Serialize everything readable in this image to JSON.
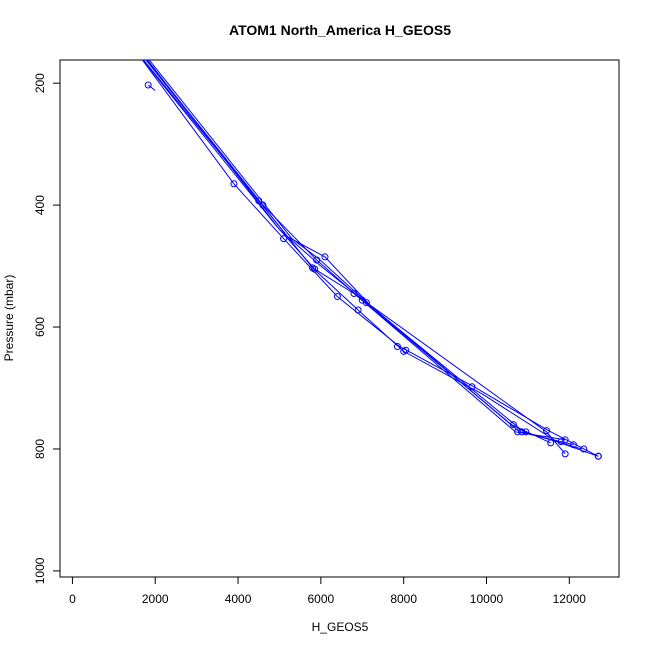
{
  "chart_data": {
    "type": "line",
    "title": "ATOM1 North_America H_GEOS5",
    "xlabel": "H_GEOS5",
    "ylabel": "Pressure (mbar)",
    "xlim": [
      -300,
      13200
    ],
    "ylim": [
      1010,
      162
    ],
    "y_inverted": true,
    "grid": false,
    "legend": "none",
    "series_color": "#0000ff",
    "marker": "open-circle",
    "x_ticks": [
      0,
      2000,
      4000,
      6000,
      8000,
      10000,
      12000
    ],
    "x_tick_labels": [
      "0",
      "2000",
      "4000",
      "6000",
      "8000",
      "10000",
      "12000"
    ],
    "y_ticks": [
      200,
      400,
      600,
      800,
      1000
    ],
    "y_tick_labels": [
      "200",
      "400",
      "600",
      "800",
      "1000"
    ],
    "series": [
      {
        "x": [
          1450,
          3900,
          5100,
          6400,
          7900,
          9700,
          11500,
          12700
        ],
        "y": [
          140,
          365,
          455,
          550,
          632,
          698,
          770,
          812
        ]
      },
      {
        "x": [
          1550,
          4500,
          5800,
          6900,
          8000,
          9900,
          11700,
          12700
        ],
        "y": [
          148,
          393,
          503,
          572,
          640,
          710,
          788,
          812
        ]
      },
      {
        "x": [
          1650,
          4600,
          5900,
          7000,
          10600,
          11550
        ],
        "y": [
          150,
          400,
          490,
          556,
          760,
          790
        ]
      },
      {
        "x": [
          1500,
          4900,
          5850,
          6800,
          10700,
          11900
        ],
        "y": [
          145,
          432,
          505,
          545,
          772,
          785
        ]
      },
      {
        "x": [
          1600,
          5200,
          6100,
          7200,
          10800,
          12100
        ],
        "y": [
          147,
          452,
          485,
          565,
          772,
          793
        ]
      },
      {
        "x": [
          1700,
          5000,
          6000,
          7100,
          10900,
          12300
        ],
        "y": [
          152,
          440,
          500,
          560,
          772,
          800
        ]
      },
      {
        "x": [
          1750,
          5300,
          5950,
          7150,
          11450,
          11900
        ],
        "y": [
          153,
          455,
          488,
          562,
          772,
          808
        ]
      },
      {
        "x": [
          1830,
          2000
        ],
        "y": [
          203,
          212
        ]
      }
    ],
    "points": {
      "x": [
        1830,
        3900,
        4500,
        4600,
        5100,
        5800,
        5850,
        5900,
        6100,
        6400,
        6800,
        6900,
        7000,
        7100,
        7850,
        8000,
        8050,
        9650,
        10650,
        10750,
        10850,
        10950,
        11450,
        11550,
        11800,
        11900,
        11900,
        12100,
        12350,
        12700,
        12700
      ],
      "y": [
        203,
        365,
        393,
        400,
        455,
        503,
        505,
        490,
        485,
        550,
        545,
        572,
        556,
        560,
        632,
        640,
        638,
        698,
        760,
        772,
        772,
        772,
        770,
        790,
        788,
        785,
        808,
        793,
        800,
        812,
        812
      ]
    }
  }
}
